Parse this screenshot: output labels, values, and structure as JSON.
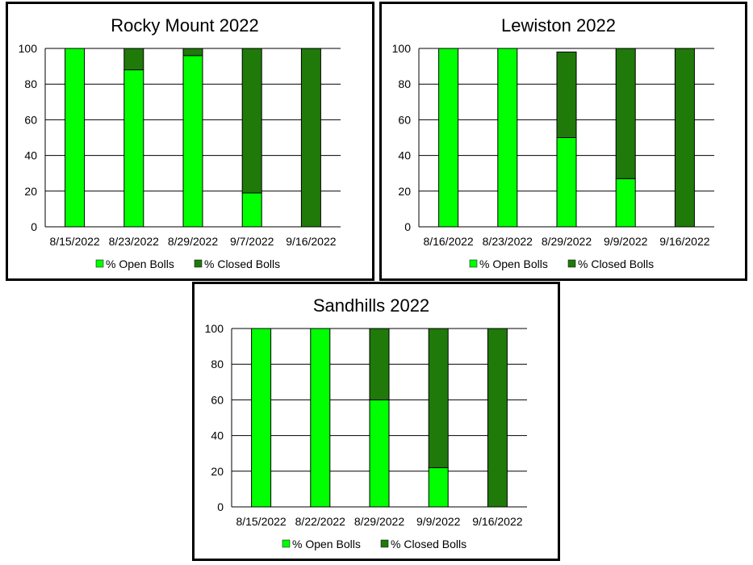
{
  "colors": {
    "open": "#00ff00",
    "closed": "#1f7a0a",
    "bar_stroke": "#000000",
    "grid": "#000000"
  },
  "legend": {
    "open_label": "% Open Bolls",
    "closed_label": "% Closed Bolls"
  },
  "chart_data": [
    {
      "type": "bar",
      "stacked": true,
      "title": "Rocky Mount 2022",
      "categories": [
        "8/15/2022",
        "8/23/2022",
        "8/29/2022",
        "9/7/2022",
        "9/16/2022"
      ],
      "series": [
        {
          "name": "% Open Bolls",
          "values": [
            100,
            88,
            96,
            19,
            0
          ]
        },
        {
          "name": "% Closed Bolls",
          "values": [
            0,
            12,
            4,
            81,
            100
          ]
        }
      ],
      "ylim": [
        0,
        100
      ],
      "yticks": [
        0,
        20,
        40,
        60,
        80,
        100
      ],
      "grid": true,
      "legend_position": "bottom"
    },
    {
      "type": "bar",
      "stacked": true,
      "title": "Lewiston 2022",
      "categories": [
        "8/16/2022",
        "8/23/2022",
        "8/29/2022",
        "9/9/2022",
        "9/16/2022"
      ],
      "series": [
        {
          "name": "% Open Bolls",
          "values": [
            100,
            100,
            50,
            27,
            0
          ]
        },
        {
          "name": "% Closed Bolls",
          "values": [
            0,
            0,
            48,
            73,
            100
          ]
        }
      ],
      "ylim": [
        0,
        100
      ],
      "yticks": [
        0,
        20,
        40,
        60,
        80,
        100
      ],
      "grid": true,
      "legend_position": "bottom"
    },
    {
      "type": "bar",
      "stacked": true,
      "title": "Sandhills 2022",
      "categories": [
        "8/15/2022",
        "8/22/2022",
        "8/29/2022",
        "9/9/2022",
        "9/16/2022"
      ],
      "series": [
        {
          "name": "% Open Bolls",
          "values": [
            100,
            100,
            60,
            22,
            0
          ]
        },
        {
          "name": "% Closed Bolls",
          "values": [
            0,
            0,
            40,
            78,
            100
          ]
        }
      ],
      "ylim": [
        0,
        100
      ],
      "yticks": [
        0,
        20,
        40,
        60,
        80,
        100
      ],
      "grid": true,
      "legend_position": "bottom"
    }
  ]
}
